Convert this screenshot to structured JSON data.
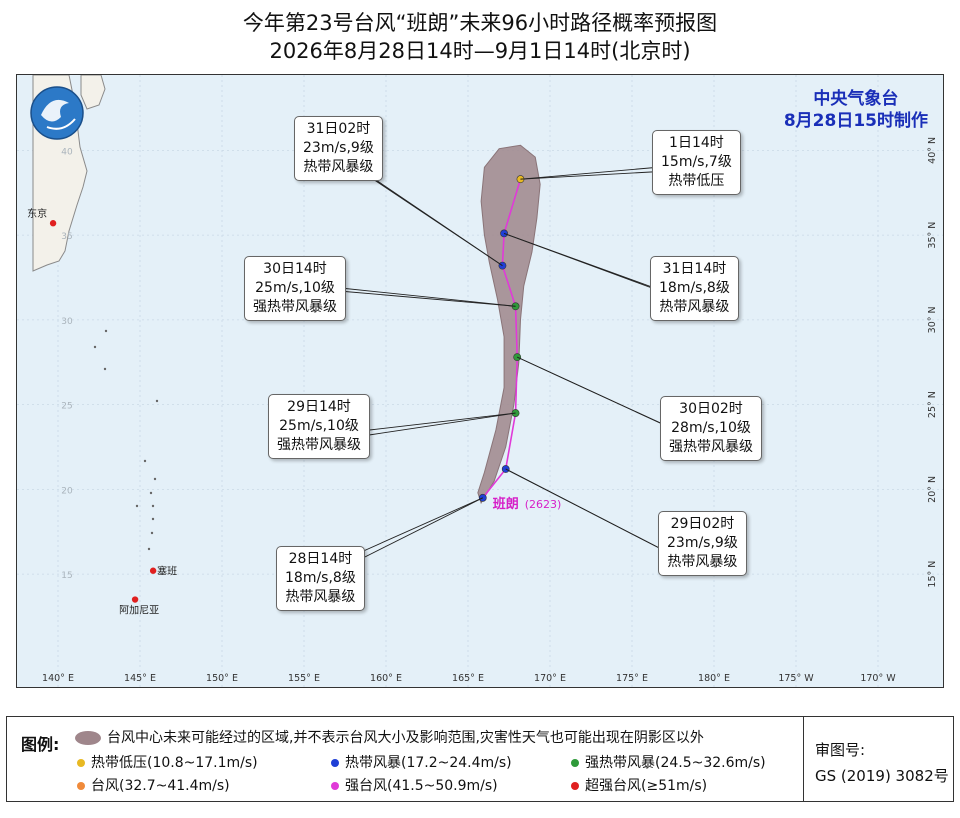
{
  "title": "今年第23号台风“班朗”未来96小时路径概率预报图",
  "subtitle": "2026年8月28日14时—9月1日14时(北京时)",
  "agency": {
    "name": "中央气象台",
    "made": "8月28日15时制作"
  },
  "typhoon_label": "班朗",
  "typhoon_code": "(2623)",
  "axes": {
    "lon_labels": [
      "140° E",
      "145° E",
      "150° E",
      "155° E",
      "160° E",
      "165° E",
      "170° E",
      "175° E",
      "180° E",
      "175° W",
      "170° W"
    ],
    "lat_labels": [
      "15° N",
      "20° N",
      "25° N",
      "30° N",
      "35° N",
      "40° N"
    ],
    "left_lat_labels": [
      "15",
      "20",
      "25",
      "30",
      "35",
      "40"
    ]
  },
  "places": [
    {
      "name": "东京",
      "lon": 139.7,
      "lat": 35.7
    },
    {
      "name": "塞班",
      "lon": 145.8,
      "lat": 15.2
    },
    {
      "name": "阿加尼亚",
      "lon": 144.7,
      "lat": 13.5
    }
  ],
  "track": [
    {
      "time": "28日14时",
      "wind": "18m/s,8级",
      "category": "热带风暴级",
      "lon": 165.9,
      "lat": 19.5,
      "color": "#1f3fd6"
    },
    {
      "time": "29日02时",
      "wind": "23m/s,9级",
      "category": "热带风暴级",
      "lon": 167.3,
      "lat": 21.2,
      "color": "#1f3fd6"
    },
    {
      "time": "29日14时",
      "wind": "25m/s,10级",
      "category": "强热带风暴级",
      "lon": 167.9,
      "lat": 24.5,
      "color": "#2f9a3a"
    },
    {
      "time": "30日02时",
      "wind": "28m/s,10级",
      "category": "强热带风暴级",
      "lon": 168.0,
      "lat": 27.8,
      "color": "#2f9a3a"
    },
    {
      "time": "30日14时",
      "wind": "25m/s,10级",
      "category": "强热带风暴级",
      "lon": 167.9,
      "lat": 30.8,
      "color": "#2f9a3a"
    },
    {
      "time": "31日02时",
      "wind": "23m/s,9级",
      "category": "热带风暴级",
      "lon": 167.1,
      "lat": 33.2,
      "color": "#1f3fd6"
    },
    {
      "time": "31日14时",
      "wind": "18m/s,8级",
      "category": "热带风暴级",
      "lon": 167.2,
      "lat": 35.1,
      "color": "#1f3fd6"
    },
    {
      "time": "1日14时",
      "wind": "15m/s,7级",
      "category": "热带低压",
      "lon": 168.2,
      "lat": 38.3,
      "color": "#e8b923"
    }
  ],
  "legend": {
    "title": "图例:",
    "shade_text": "台风中心未来可能经过的区域,并不表示台风大小及影响范围,灾害性天气也可能出现在阴影区以外",
    "items": [
      {
        "label": "热带低压(10.8~17.1m/s)",
        "color": "#e8b923"
      },
      {
        "label": "热带风暴(17.2~24.4m/s)",
        "color": "#1f3fd6"
      },
      {
        "label": "强热带风暴(24.5~32.6m/s)",
        "color": "#2f9a3a"
      },
      {
        "label": "台风(32.7~41.4m/s)",
        "color": "#f08a3a"
      },
      {
        "label": "强台风(41.5~50.9m/s)",
        "color": "#e03ad8"
      },
      {
        "label": "超强台风(≥51m/s)",
        "color": "#e02020"
      }
    ],
    "approval_label": "审图号:",
    "approval_no": "GS (2019) 3082号"
  },
  "colors": {
    "ocean": "#e4f0f8",
    "land": "#f3f1ea",
    "track_line": "#e03ad8",
    "cone": "#9f868b"
  }
}
